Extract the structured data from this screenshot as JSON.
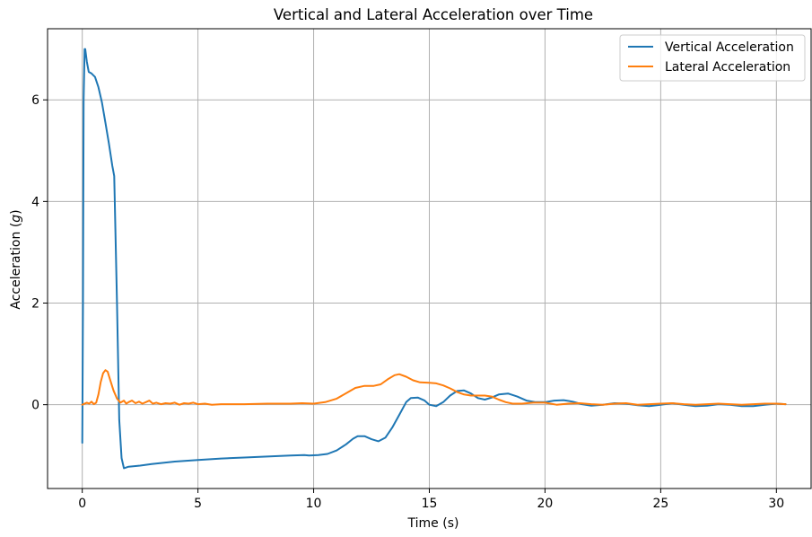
{
  "chart_data": {
    "type": "line",
    "title": "Vertical and Lateral Acceleration over Time",
    "xlabel": "Time (s)",
    "ylabel_prefix": "Acceleration (",
    "ylabel_var": "g",
    "ylabel_suffix": ")",
    "xlim": [
      -1.5,
      31.5
    ],
    "ylim": [
      -1.65,
      7.4
    ],
    "xticks": [
      0,
      5,
      10,
      15,
      20,
      25,
      30
    ],
    "yticks": [
      0,
      2,
      4,
      6
    ],
    "grid": true,
    "legend_position": "top-right",
    "series": [
      {
        "name": "Vertical Acceleration",
        "color": "#1f77b4",
        "points": [
          [
            0.0,
            -0.75
          ],
          [
            0.03,
            2.0
          ],
          [
            0.06,
            6.0
          ],
          [
            0.1,
            7.0
          ],
          [
            0.13,
            7.0
          ],
          [
            0.2,
            6.75
          ],
          [
            0.28,
            6.55
          ],
          [
            0.4,
            6.52
          ],
          [
            0.55,
            6.45
          ],
          [
            0.7,
            6.25
          ],
          [
            0.85,
            5.95
          ],
          [
            1.0,
            5.55
          ],
          [
            1.15,
            5.15
          ],
          [
            1.3,
            4.7
          ],
          [
            1.38,
            4.5
          ],
          [
            1.5,
            2.0
          ],
          [
            1.6,
            -0.3
          ],
          [
            1.7,
            -1.05
          ],
          [
            1.8,
            -1.25
          ],
          [
            2.0,
            -1.22
          ],
          [
            2.5,
            -1.2
          ],
          [
            3.0,
            -1.17
          ],
          [
            4.0,
            -1.12
          ],
          [
            5.0,
            -1.09
          ],
          [
            6.0,
            -1.06
          ],
          [
            7.0,
            -1.04
          ],
          [
            8.0,
            -1.02
          ],
          [
            9.0,
            -1.0
          ],
          [
            9.6,
            -0.99
          ],
          [
            9.8,
            -1.0
          ],
          [
            10.2,
            -0.99
          ],
          [
            10.6,
            -0.97
          ],
          [
            11.0,
            -0.9
          ],
          [
            11.4,
            -0.78
          ],
          [
            11.7,
            -0.67
          ],
          [
            11.9,
            -0.62
          ],
          [
            12.2,
            -0.62
          ],
          [
            12.5,
            -0.68
          ],
          [
            12.8,
            -0.72
          ],
          [
            13.1,
            -0.65
          ],
          [
            13.4,
            -0.45
          ],
          [
            13.7,
            -0.2
          ],
          [
            14.0,
            0.05
          ],
          [
            14.2,
            0.13
          ],
          [
            14.5,
            0.14
          ],
          [
            14.8,
            0.08
          ],
          [
            15.0,
            0.0
          ],
          [
            15.3,
            -0.03
          ],
          [
            15.6,
            0.05
          ],
          [
            15.9,
            0.18
          ],
          [
            16.2,
            0.27
          ],
          [
            16.5,
            0.28
          ],
          [
            16.8,
            0.22
          ],
          [
            17.1,
            0.13
          ],
          [
            17.4,
            0.1
          ],
          [
            17.7,
            0.14
          ],
          [
            18.0,
            0.2
          ],
          [
            18.4,
            0.22
          ],
          [
            18.8,
            0.16
          ],
          [
            19.2,
            0.08
          ],
          [
            19.6,
            0.05
          ],
          [
            20.0,
            0.05
          ],
          [
            20.4,
            0.08
          ],
          [
            20.8,
            0.09
          ],
          [
            21.2,
            0.06
          ],
          [
            21.6,
            0.01
          ],
          [
            22.0,
            -0.02
          ],
          [
            22.5,
            0.0
          ],
          [
            23.0,
            0.03
          ],
          [
            23.5,
            0.02
          ],
          [
            24.0,
            -0.01
          ],
          [
            24.5,
            -0.03
          ],
          [
            25.0,
            0.0
          ],
          [
            25.5,
            0.03
          ],
          [
            26.0,
            0.0
          ],
          [
            26.5,
            -0.03
          ],
          [
            27.0,
            -0.02
          ],
          [
            27.5,
            0.01
          ],
          [
            28.0,
            0.0
          ],
          [
            28.5,
            -0.03
          ],
          [
            29.0,
            -0.03
          ],
          [
            29.5,
            0.0
          ],
          [
            30.0,
            0.02
          ],
          [
            30.4,
            0.01
          ]
        ]
      },
      {
        "name": "Lateral Acceleration",
        "color": "#ff7f0e",
        "points": [
          [
            0.0,
            0.0
          ],
          [
            0.1,
            0.02
          ],
          [
            0.2,
            0.04
          ],
          [
            0.3,
            0.02
          ],
          [
            0.4,
            0.06
          ],
          [
            0.5,
            0.01
          ],
          [
            0.6,
            0.04
          ],
          [
            0.7,
            0.2
          ],
          [
            0.8,
            0.45
          ],
          [
            0.9,
            0.62
          ],
          [
            1.0,
            0.68
          ],
          [
            1.1,
            0.65
          ],
          [
            1.2,
            0.5
          ],
          [
            1.35,
            0.28
          ],
          [
            1.5,
            0.12
          ],
          [
            1.65,
            0.04
          ],
          [
            1.8,
            0.08
          ],
          [
            1.9,
            0.02
          ],
          [
            2.0,
            0.05
          ],
          [
            2.15,
            0.08
          ],
          [
            2.3,
            0.03
          ],
          [
            2.45,
            0.06
          ],
          [
            2.6,
            0.02
          ],
          [
            2.75,
            0.05
          ],
          [
            2.9,
            0.08
          ],
          [
            3.05,
            0.02
          ],
          [
            3.2,
            0.04
          ],
          [
            3.4,
            0.01
          ],
          [
            3.6,
            0.03
          ],
          [
            3.8,
            0.02
          ],
          [
            4.0,
            0.04
          ],
          [
            4.2,
            0.0
          ],
          [
            4.4,
            0.03
          ],
          [
            4.6,
            0.02
          ],
          [
            4.8,
            0.04
          ],
          [
            5.0,
            0.01
          ],
          [
            5.3,
            0.02
          ],
          [
            5.6,
            0.0
          ],
          [
            6.0,
            0.01
          ],
          [
            7.0,
            0.01
          ],
          [
            8.0,
            0.02
          ],
          [
            9.0,
            0.02
          ],
          [
            9.5,
            0.03
          ],
          [
            10.0,
            0.02
          ],
          [
            10.5,
            0.05
          ],
          [
            11.0,
            0.12
          ],
          [
            11.5,
            0.25
          ],
          [
            11.8,
            0.33
          ],
          [
            12.2,
            0.37
          ],
          [
            12.6,
            0.37
          ],
          [
            12.9,
            0.4
          ],
          [
            13.2,
            0.5
          ],
          [
            13.5,
            0.58
          ],
          [
            13.7,
            0.6
          ],
          [
            14.0,
            0.55
          ],
          [
            14.3,
            0.48
          ],
          [
            14.6,
            0.44
          ],
          [
            15.0,
            0.43
          ],
          [
            15.3,
            0.42
          ],
          [
            15.6,
            0.38
          ],
          [
            15.9,
            0.32
          ],
          [
            16.2,
            0.25
          ],
          [
            16.5,
            0.2
          ],
          [
            16.8,
            0.18
          ],
          [
            17.1,
            0.18
          ],
          [
            17.4,
            0.18
          ],
          [
            17.7,
            0.16
          ],
          [
            18.0,
            0.1
          ],
          [
            18.3,
            0.05
          ],
          [
            18.6,
            0.02
          ],
          [
            19.0,
            0.02
          ],
          [
            19.5,
            0.04
          ],
          [
            20.0,
            0.04
          ],
          [
            20.5,
            0.0
          ],
          [
            21.0,
            0.02
          ],
          [
            21.5,
            0.03
          ],
          [
            22.0,
            0.01
          ],
          [
            22.5,
            0.0
          ],
          [
            23.0,
            0.02
          ],
          [
            23.5,
            0.03
          ],
          [
            24.0,
            0.0
          ],
          [
            24.5,
            0.01
          ],
          [
            25.0,
            0.02
          ],
          [
            25.5,
            0.03
          ],
          [
            26.0,
            0.01
          ],
          [
            26.5,
            0.0
          ],
          [
            27.0,
            0.01
          ],
          [
            27.5,
            0.02
          ],
          [
            28.0,
            0.01
          ],
          [
            28.5,
            0.0
          ],
          [
            29.0,
            0.01
          ],
          [
            29.5,
            0.02
          ],
          [
            30.0,
            0.02
          ],
          [
            30.4,
            0.01
          ]
        ]
      }
    ]
  }
}
